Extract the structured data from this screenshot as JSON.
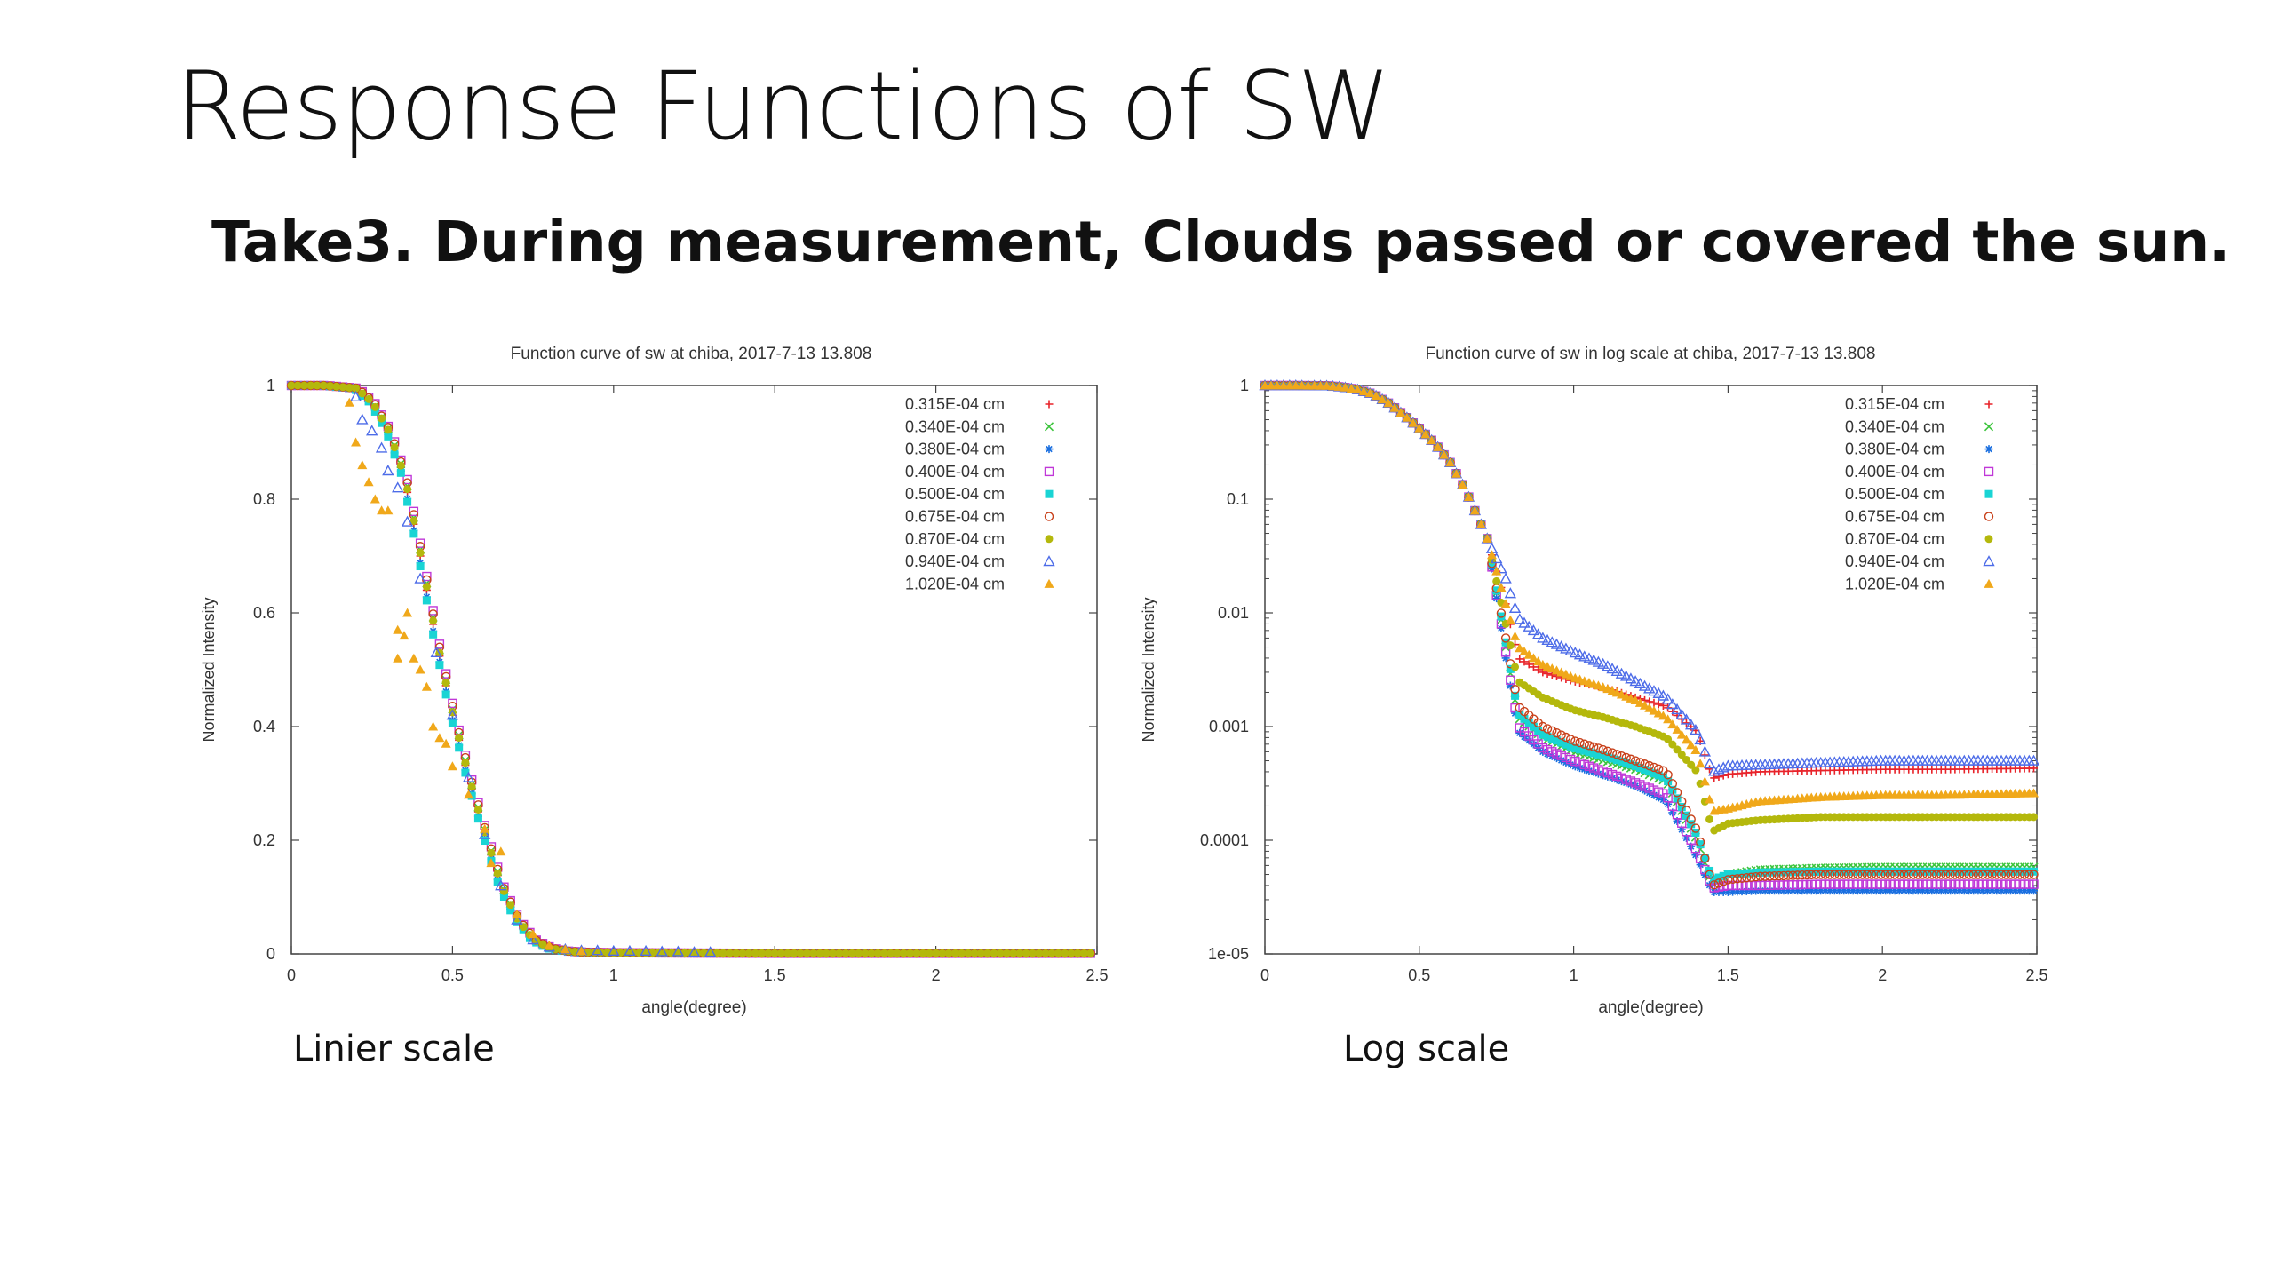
{
  "slide": {
    "title": "Response Functions of SW",
    "subtitle": "Take3. During measurement, Clouds passed or covered the sun.",
    "caption_left": "Linier scale",
    "caption_right": "Log scale"
  },
  "legend_colors": [
    "#e8232a",
    "#3cc43c",
    "#1a6fe0",
    "#c038d8",
    "#19d4d4",
    "#c8401a",
    "#b4b80c",
    "#4d6ce8",
    "#f0a81a"
  ],
  "legend_markers": [
    "plus",
    "cross",
    "star",
    "square-open",
    "square-filled",
    "circle-open",
    "circle-filled",
    "triangle-open",
    "triangle-filled"
  ],
  "chart_data": [
    {
      "type": "scatter",
      "title": "Function curve of sw at chiba, 2017-7-13 13.808",
      "xlabel": "angle(degree)",
      "ylabel": "Normalized Intensity",
      "xlim": [
        0,
        2.5
      ],
      "ylim": [
        0,
        1
      ],
      "yscale": "linear",
      "xticks": [
        "0",
        "0.5",
        "1",
        "1.5",
        "2",
        "2.5"
      ],
      "xtick_values": [
        0,
        0.5,
        1,
        1.5,
        2,
        2.5
      ],
      "yticks": [
        "0",
        "0.2",
        "0.4",
        "0.6",
        "0.8",
        "1"
      ],
      "ytick_values": [
        0,
        0.2,
        0.4,
        0.6,
        0.8,
        1
      ],
      "legend_position": "top-right",
      "grid": false,
      "base_curve": {
        "x": [
          0,
          0.1,
          0.2,
          0.25,
          0.3,
          0.35,
          0.4,
          0.45,
          0.5,
          0.55,
          0.6,
          0.65,
          0.7,
          0.75,
          0.8,
          0.85,
          0.9,
          1.0,
          1.5,
          2.0,
          2.5
        ],
        "y": [
          1.0,
          1.0,
          0.995,
          0.97,
          0.92,
          0.84,
          0.7,
          0.55,
          0.42,
          0.31,
          0.21,
          0.12,
          0.06,
          0.025,
          0.01,
          0.005,
          0.003,
          0.002,
          0.001,
          0.001,
          0.001
        ]
      },
      "series": [
        {
          "name": "0.315E-04 cm",
          "shift": 0.0,
          "x_step": 0.02
        },
        {
          "name": "0.340E-04 cm",
          "shift": 0.004,
          "x_step": 0.02
        },
        {
          "name": "0.380E-04 cm",
          "shift": -0.004,
          "x_step": 0.02
        },
        {
          "name": "0.400E-04 cm",
          "shift": 0.008,
          "x_step": 0.02
        },
        {
          "name": "0.500E-04 cm",
          "shift": -0.006,
          "x_step": 0.02
        },
        {
          "name": "0.675E-04 cm",
          "shift": 0.006,
          "x_step": 0.02
        },
        {
          "name": "0.870E-04 cm",
          "shift": 0.002,
          "x_step": 0.02
        },
        {
          "name": "0.940E-04 cm",
          "x": [
            0.2,
            0.22,
            0.25,
            0.28,
            0.3,
            0.33,
            0.36,
            0.4,
            0.45,
            0.5,
            0.55,
            0.6,
            0.65,
            0.7,
            0.75,
            0.8,
            0.85,
            0.9,
            0.95,
            1.0,
            1.05,
            1.1,
            1.15,
            1.2,
            1.25,
            1.3
          ],
          "y": [
            0.98,
            0.94,
            0.92,
            0.89,
            0.85,
            0.82,
            0.76,
            0.66,
            0.53,
            0.42,
            0.31,
            0.21,
            0.12,
            0.06,
            0.025,
            0.012,
            0.008,
            0.006,
            0.006,
            0.005,
            0.005,
            0.005,
            0.004,
            0.004,
            0.003,
            0.003
          ]
        },
        {
          "name": "1.020E-04 cm",
          "x": [
            0.18,
            0.2,
            0.22,
            0.24,
            0.26,
            0.28,
            0.3,
            0.33,
            0.33,
            0.35,
            0.36,
            0.38,
            0.4,
            0.42,
            0.44,
            0.46,
            0.48,
            0.5,
            0.55,
            0.6,
            0.62,
            0.65,
            0.7,
            0.75,
            0.8,
            0.85,
            0.9
          ],
          "y": [
            0.97,
            0.9,
            0.86,
            0.83,
            0.8,
            0.78,
            0.78,
            0.57,
            0.52,
            0.56,
            0.6,
            0.52,
            0.5,
            0.47,
            0.4,
            0.38,
            0.37,
            0.33,
            0.28,
            0.22,
            0.16,
            0.18,
            0.07,
            0.035,
            0.015,
            0.008,
            0.005
          ]
        }
      ]
    },
    {
      "type": "scatter",
      "title": "Function curve of sw in log scale at chiba, 2017-7-13 13.808",
      "xlabel": "angle(degree)",
      "ylabel": "Normalized Intensity",
      "xlim": [
        0,
        2.5
      ],
      "ylim": [
        1e-05,
        1
      ],
      "yscale": "log",
      "xticks": [
        "0",
        "0.5",
        "1",
        "1.5",
        "2",
        "2.5"
      ],
      "xtick_values": [
        0,
        0.5,
        1,
        1.5,
        2,
        2.5
      ],
      "yticks": [
        "1e-05",
        "0.0001",
        "0.001",
        "0.01",
        "0.1",
        "1"
      ],
      "ytick_values": [
        1e-05,
        0.0001,
        0.001,
        0.01,
        0.1,
        1
      ],
      "legend_position": "top-right",
      "grid": false,
      "shared_curve": {
        "x": [
          0,
          0.1,
          0.2,
          0.25,
          0.3,
          0.35,
          0.4,
          0.45,
          0.5,
          0.55,
          0.6,
          0.65,
          0.7,
          0.72
        ],
        "y": [
          1.0,
          1.0,
          0.995,
          0.97,
          0.92,
          0.84,
          0.7,
          0.55,
          0.42,
          0.31,
          0.21,
          0.12,
          0.06,
          0.045
        ]
      },
      "series": [
        {
          "name": "0.315E-04 cm",
          "tail_x": [
            0.72,
            0.78,
            0.82,
            0.9,
            1.0,
            1.1,
            1.2,
            1.3,
            1.4,
            1.45,
            1.5,
            1.6,
            1.8,
            2.0,
            2.2,
            2.5
          ],
          "tail_y": [
            0.045,
            0.012,
            0.004,
            0.003,
            0.0025,
            0.0022,
            0.0018,
            0.0015,
            0.0009,
            0.00035,
            0.00038,
            0.0004,
            0.00041,
            0.00042,
            0.00042,
            0.00043
          ]
        },
        {
          "name": "0.340E-04 cm",
          "tail_x": [
            0.72,
            0.78,
            0.82,
            0.9,
            1.0,
            1.1,
            1.2,
            1.3,
            1.4,
            1.45,
            1.5,
            1.6,
            1.8,
            2.0,
            2.2,
            2.5
          ],
          "tail_y": [
            0.045,
            0.005,
            0.0012,
            0.0008,
            0.0006,
            0.0005,
            0.00042,
            0.00033,
            0.0001,
            4e-05,
            5e-05,
            5.5e-05,
            5.7e-05,
            5.8e-05,
            5.8e-05,
            5.8e-05
          ]
        },
        {
          "name": "0.380E-04 cm",
          "tail_x": [
            0.72,
            0.78,
            0.82,
            0.9,
            1.0,
            1.1,
            1.2,
            1.3,
            1.4,
            1.45,
            1.5,
            1.6,
            1.8,
            2.0,
            2.2,
            2.5
          ],
          "tail_y": [
            0.045,
            0.004,
            0.0009,
            0.0006,
            0.00045,
            0.00037,
            0.0003,
            0.00022,
            7e-05,
            3.5e-05,
            3.5e-05,
            3.6e-05,
            3.6e-05,
            3.6e-05,
            3.6e-05,
            3.6e-05
          ]
        },
        {
          "name": "0.400E-04 cm",
          "tail_x": [
            0.72,
            0.78,
            0.82,
            0.9,
            1.0,
            1.1,
            1.2,
            1.3,
            1.4,
            1.45,
            1.5,
            1.6,
            1.8,
            2.0,
            2.2,
            2.5
          ],
          "tail_y": [
            0.045,
            0.0045,
            0.001,
            0.00065,
            0.0005,
            0.0004,
            0.00032,
            0.00025,
            8e-05,
            3.8e-05,
            4e-05,
            4e-05,
            4.1e-05,
            4.1e-05,
            4.1e-05,
            4.1e-05
          ]
        },
        {
          "name": "0.500E-04 cm",
          "tail_x": [
            0.72,
            0.78,
            0.82,
            0.9,
            1.0,
            1.1,
            1.2,
            1.3,
            1.4,
            1.45,
            1.5,
            1.6,
            1.8,
            2.0,
            2.2,
            2.5
          ],
          "tail_y": [
            0.045,
            0.0055,
            0.0013,
            0.00085,
            0.00065,
            0.00055,
            0.00045,
            0.00035,
            0.00011,
            4.5e-05,
            5e-05,
            5.2e-05,
            5.3e-05,
            5.3e-05,
            5.3e-05,
            5.3e-05
          ]
        },
        {
          "name": "0.675E-04 cm",
          "tail_x": [
            0.72,
            0.78,
            0.82,
            0.9,
            1.0,
            1.1,
            1.2,
            1.3,
            1.4,
            1.45,
            1.5,
            1.6,
            1.8,
            2.0,
            2.2,
            2.5
          ],
          "tail_y": [
            0.045,
            0.006,
            0.0015,
            0.001,
            0.00075,
            0.00062,
            0.0005,
            0.0004,
            0.00012,
            4e-05,
            4.5e-05,
            4.8e-05,
            5e-05,
            5e-05,
            5e-05,
            5e-05
          ]
        },
        {
          "name": "0.870E-04 cm",
          "tail_x": [
            0.72,
            0.78,
            0.82,
            0.9,
            1.0,
            1.1,
            1.2,
            1.3,
            1.4,
            1.45,
            1.5,
            1.6,
            1.8,
            2.0,
            2.2,
            2.5
          ],
          "tail_y": [
            0.045,
            0.008,
            0.0025,
            0.0018,
            0.0014,
            0.0012,
            0.001,
            0.0008,
            0.0004,
            0.00012,
            0.00014,
            0.00015,
            0.00016,
            0.00016,
            0.00016,
            0.00016
          ]
        },
        {
          "name": "0.940E-04 cm",
          "tail_x": [
            0.72,
            0.78,
            0.82,
            0.9,
            1.0,
            1.1,
            1.2,
            1.3,
            1.4,
            1.45,
            1.5,
            1.6,
            1.8,
            2.0,
            2.2,
            2.5
          ],
          "tail_y": [
            0.045,
            0.02,
            0.009,
            0.006,
            0.0045,
            0.0035,
            0.0025,
            0.0018,
            0.0009,
            0.0004,
            0.00045,
            0.00046,
            0.00048,
            0.0005,
            0.0005,
            0.0005
          ]
        },
        {
          "name": "1.020E-04 cm",
          "tail_x": [
            0.72,
            0.78,
            0.82,
            0.9,
            1.0,
            1.1,
            1.2,
            1.3,
            1.4,
            1.45,
            1.5,
            1.6,
            1.8,
            2.0,
            2.2,
            2.5
          ],
          "tail_y": [
            0.045,
            0.012,
            0.005,
            0.0035,
            0.0027,
            0.0022,
            0.0017,
            0.0012,
            0.0006,
            0.00018,
            0.00019,
            0.00022,
            0.00024,
            0.00025,
            0.00025,
            0.00026
          ]
        }
      ]
    }
  ]
}
